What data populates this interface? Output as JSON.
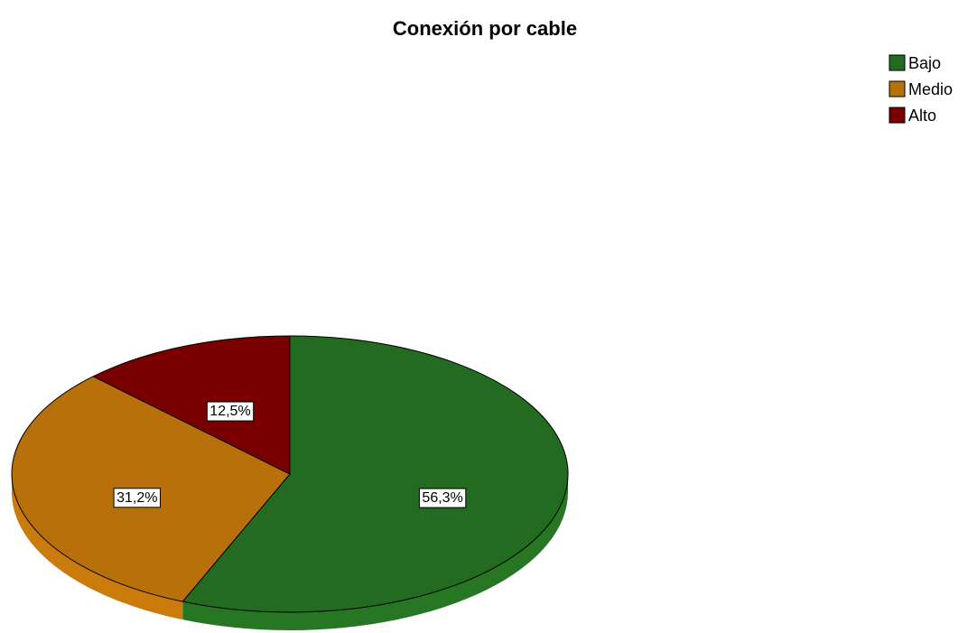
{
  "chart_data": {
    "type": "pie",
    "title": "Conexión por cable",
    "categories": [
      "Bajo",
      "Medio",
      "Alto"
    ],
    "values": [
      56.3,
      31.2,
      12.5
    ],
    "value_labels": [
      "56,3%",
      "31,2%",
      "12,5%"
    ],
    "colors": [
      "#236b20",
      "#b8700b",
      "#7a0000"
    ],
    "legend": "top-right"
  }
}
